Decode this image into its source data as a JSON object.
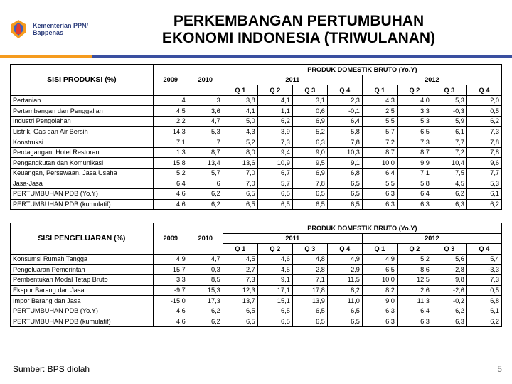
{
  "header": {
    "ministry_line1": "Kementerian PPN/",
    "ministry_line2": "Bappenas",
    "title_line1": "PERKEMBANGAN PERTUMBUHAN",
    "title_line2": "EKONOMI INDONESIA (TRIWULANAN)"
  },
  "divider": {
    "orange": "#f59b1e",
    "blue": "#3a4fa0"
  },
  "table1": {
    "row_header": "SISI PRODUKSI (%)",
    "top_header": "PRODUK DOMESTIK BRUTO (Yo.Y)",
    "year_2009": "2009",
    "year_2010": "2010",
    "year_2011": "2011",
    "year_2012": "2012",
    "q1": "Q 1",
    "q2": "Q 2",
    "q3": "Q 3",
    "q4": "Q 4",
    "rows": [
      {
        "label": "Pertanian",
        "v": [
          "4",
          "3",
          "3,8",
          "4,1",
          "3,1",
          "2,3",
          "4,3",
          "4,0",
          "5,3",
          "2,0"
        ]
      },
      {
        "label": "Pertambangan dan Penggalian",
        "v": [
          "4,5",
          "3,6",
          "4,1",
          "1,1",
          "0,6",
          "-0,1",
          "2,5",
          "3,3",
          "-0,3",
          "0,5"
        ]
      },
      {
        "label": "Industri Pengolahan",
        "v": [
          "2,2",
          "4,7",
          "5,0",
          "6,2",
          "6,9",
          "6,4",
          "5,5",
          "5,3",
          "5,9",
          "6,2"
        ]
      },
      {
        "label": "Listrik, Gas dan Air Bersih",
        "v": [
          "14,3",
          "5,3",
          "4,3",
          "3,9",
          "5,2",
          "5,8",
          "5,7",
          "6,5",
          "6,1",
          "7,3"
        ]
      },
      {
        "label": "Konstruksi",
        "v": [
          "7,1",
          "7",
          "5,2",
          "7,3",
          "6,3",
          "7,8",
          "7,2",
          "7,3",
          "7,7",
          "7,8"
        ]
      },
      {
        "label": "Perdagangan, Hotel Restoran",
        "v": [
          "1,3",
          "8,7",
          "8,0",
          "9,4",
          "9,0",
          "10,3",
          "8,7",
          "8,7",
          "7,2",
          "7,8"
        ]
      },
      {
        "label": "Pengangkutan dan Komunikasi",
        "v": [
          "15,8",
          "13,4",
          "13,6",
          "10,9",
          "9,5",
          "9,1",
          "10,0",
          "9,9",
          "10,4",
          "9,6"
        ]
      },
      {
        "label": "Keuangan, Persewaan, Jasa Usaha",
        "v": [
          "5,2",
          "5,7",
          "7,0",
          "6,7",
          "6,9",
          "6,8",
          "6,4",
          "7,1",
          "7,5",
          "7,7"
        ]
      },
      {
        "label": "Jasa-Jasa",
        "v": [
          "6,4",
          "6",
          "7,0",
          "5,7",
          "7,8",
          "6,5",
          "5,5",
          "5,8",
          "4,5",
          "5,3"
        ]
      },
      {
        "label": "PERTUMBUHAN PDB (Yo.Y)",
        "v": [
          "4,6",
          "6,2",
          "6,5",
          "6,5",
          "6,5",
          "6,5",
          "6,3",
          "6,4",
          "6,2",
          "6,1"
        ]
      },
      {
        "label": "PERTUMBUHAN PDB (kumulatif)",
        "v": [
          "4,6",
          "6,2",
          "6,5",
          "6,5",
          "6,5",
          "6,5",
          "6,3",
          "6,3",
          "6,3",
          "6,2"
        ]
      }
    ]
  },
  "table2": {
    "row_header": "SISI PENGELUARAN (%)",
    "top_header": "PRODUK DOMESTIK BRUTO (Yo.Y)",
    "year_2009": "2009",
    "year_2010": "2010",
    "year_2011": "2011",
    "year_2012": "2012",
    "q1": "Q 1",
    "q2": "Q 2",
    "q3": "Q 3",
    "q4": "Q 4",
    "rows": [
      {
        "label": "Konsumsi Rumah Tangga",
        "v": [
          "4,9",
          "4,7",
          "4,5",
          "4,6",
          "4,8",
          "4,9",
          "4,9",
          "5,2",
          "5,6",
          "5,4"
        ]
      },
      {
        "label": "Pengeluaran Pemerintah",
        "v": [
          "15,7",
          "0,3",
          "2,7",
          "4,5",
          "2,8",
          "2,9",
          "6,5",
          "8,6",
          "-2,8",
          "-3,3"
        ]
      },
      {
        "label": "Pembentukan Modal Tetap Bruto",
        "v": [
          "3,3",
          "8,5",
          "7,3",
          "9,1",
          "7,1",
          "11,5",
          "10,0",
          "12,5",
          "9,8",
          "7,3"
        ]
      },
      {
        "label": "Ekspor Barang dan Jasa",
        "v": [
          "-9,7",
          "15,3",
          "12,3",
          "17,1",
          "17,8",
          "8,2",
          "8,2",
          "2,6",
          "-2,6",
          "0,5"
        ]
      },
      {
        "label": "Impor Barang dan Jasa",
        "v": [
          "-15,0",
          "17,3",
          "13,7",
          "15,1",
          "13,9",
          "11,0",
          "9,0",
          "11,3",
          "-0,2",
          "6,8"
        ]
      },
      {
        "label": "PERTUMBUHAN PDB (Yo.Y)",
        "v": [
          "4,6",
          "6,2",
          "6,5",
          "6,5",
          "6,5",
          "6,5",
          "6,3",
          "6,4",
          "6,2",
          "6,1"
        ]
      },
      {
        "label": "PERTUMBUHAN PDB (kumulatif)",
        "v": [
          "4,6",
          "6,2",
          "6,5",
          "6,5",
          "6,5",
          "6,5",
          "6,3",
          "6,3",
          "6,3",
          "6,2"
        ]
      }
    ]
  },
  "footer": {
    "source": "Sumber: BPS diolah",
    "page": "5"
  }
}
